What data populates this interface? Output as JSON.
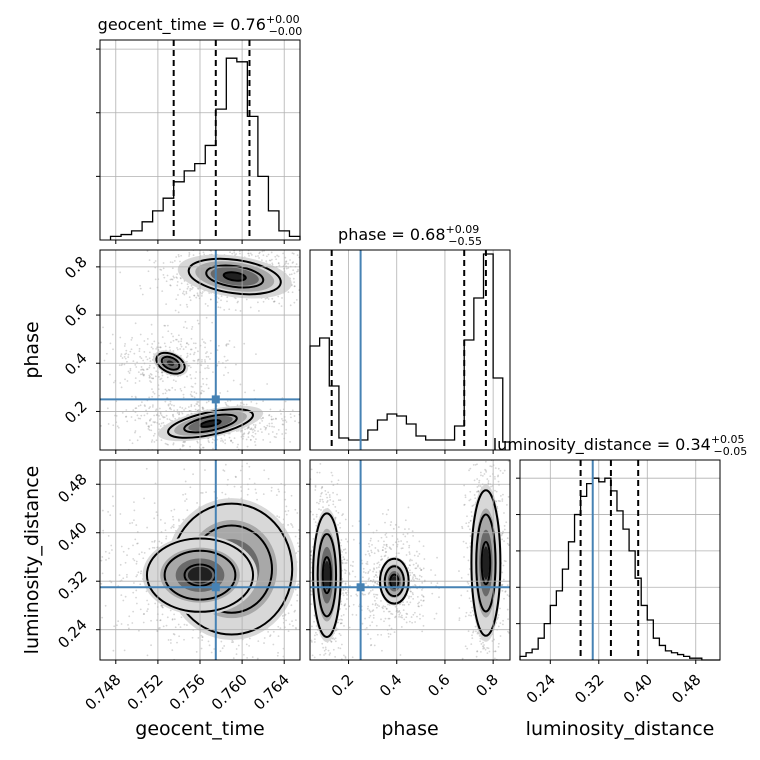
{
  "chart_data": {
    "type": "corner",
    "parameters": [
      "geocent_time",
      "phase",
      "luminosity_distance"
    ],
    "truths": {
      "geocent_time": 0.7575,
      "phase": 0.25,
      "luminosity_distance": 0.31
    },
    "colors": {
      "truth": "#4682b4",
      "contour": "#000000",
      "histogram": "#000000"
    },
    "grid": true,
    "diagonal": [
      {
        "param": "geocent_time",
        "title_main": "geocent_time = 0.76",
        "title_sup": "+0.00",
        "title_sub": "−0.00",
        "xlim": [
          0.7465,
          0.7655
        ],
        "ylim": [
          0,
          1.1
        ],
        "ticks": [
          0.748,
          0.752,
          0.756,
          0.76,
          0.764
        ],
        "tick_labels": [],
        "ytick_fracs": [
          0.35,
          0.7,
          1.05
        ],
        "quantiles": [
          0.7535,
          0.7575,
          0.7607
        ],
        "hist_edges": [
          0.7475,
          0.7485,
          0.7495,
          0.7505,
          0.7515,
          0.7525,
          0.7535,
          0.7545,
          0.7555,
          0.7565,
          0.7575,
          0.7585,
          0.7595,
          0.7605,
          0.7615,
          0.7625,
          0.7635,
          0.7645,
          0.7655
        ],
        "hist_values": [
          0.02,
          0.03,
          0.05,
          0.1,
          0.16,
          0.23,
          0.32,
          0.38,
          0.42,
          0.52,
          0.72,
          1.0,
          0.98,
          0.68,
          0.35,
          0.16,
          0.05,
          0.02
        ]
      },
      {
        "param": "phase",
        "title_main": "phase = 0.68",
        "title_sup": "+0.09",
        "title_sub": "−0.55",
        "xlim": [
          0.04,
          0.87
        ],
        "ylim": [
          0,
          1.0
        ],
        "ticks": [
          0.2,
          0.4,
          0.6,
          0.8
        ],
        "tick_labels": [],
        "ytick_fracs": [],
        "quantiles": [
          0.13,
          0.68,
          0.77
        ],
        "hist_edges": [
          0.04,
          0.08,
          0.12,
          0.16,
          0.2,
          0.24,
          0.28,
          0.32,
          0.36,
          0.4,
          0.44,
          0.48,
          0.52,
          0.56,
          0.6,
          0.64,
          0.68,
          0.72,
          0.76,
          0.8,
          0.84,
          0.87
        ],
        "hist_values": [
          0.52,
          0.56,
          0.32,
          0.06,
          0.05,
          0.05,
          0.1,
          0.15,
          0.18,
          0.17,
          0.13,
          0.07,
          0.05,
          0.05,
          0.05,
          0.12,
          0.55,
          0.76,
          0.98,
          0.36,
          0.04
        ]
      },
      {
        "param": "luminosity_distance",
        "title_main": "luminosity_distance = 0.34",
        "title_sup": "+0.05",
        "title_sub": "−0.05",
        "xlim": [
          0.19,
          0.52
        ],
        "ylim": [
          0,
          1.1
        ],
        "ticks": [
          0.24,
          0.32,
          0.4,
          0.48
        ],
        "tick_labels": [
          "0.24",
          "0.32",
          "0.40",
          "0.48"
        ],
        "ytick_fracs": [
          0.2,
          0.4,
          0.6,
          0.8,
          1.0
        ],
        "quantiles": [
          0.29,
          0.34,
          0.385
        ],
        "hist_edges": [
          0.19,
          0.2,
          0.21,
          0.22,
          0.23,
          0.24,
          0.25,
          0.26,
          0.27,
          0.28,
          0.29,
          0.3,
          0.31,
          0.32,
          0.33,
          0.34,
          0.35,
          0.36,
          0.37,
          0.38,
          0.39,
          0.4,
          0.41,
          0.42,
          0.43,
          0.44,
          0.45,
          0.46,
          0.47,
          0.48,
          0.49,
          0.5,
          0.51,
          0.52
        ],
        "hist_values": [
          0.02,
          0.04,
          0.06,
          0.12,
          0.2,
          0.3,
          0.38,
          0.5,
          0.65,
          0.8,
          0.9,
          0.97,
          1.0,
          0.98,
          1.0,
          0.93,
          0.82,
          0.72,
          0.6,
          0.45,
          0.3,
          0.22,
          0.12,
          0.08,
          0.05,
          0.04,
          0.03,
          0.02,
          0.01,
          0.01,
          0.0,
          0.0,
          0.0
        ]
      }
    ],
    "panels_2d": [
      {
        "x": "geocent_time",
        "y": "phase",
        "xlim": [
          0.7465,
          0.7655
        ],
        "ylim": [
          0.04,
          0.87
        ],
        "xticks": [
          0.748,
          0.752,
          0.756,
          0.76,
          0.764
        ],
        "xtick_labels": [],
        "yticks": [
          0.2,
          0.4,
          0.6,
          0.8
        ],
        "ytick_labels": [
          "0.2",
          "0.4",
          "0.6",
          "0.8"
        ],
        "clusters": [
          {
            "cx": 0.7593,
            "cy": 0.76,
            "sx": 0.0021,
            "sy": 0.033,
            "rot": -8,
            "weight": 1.0
          },
          {
            "cx": 0.7532,
            "cy": 0.4,
            "sx": 0.0017,
            "sy": 0.045,
            "rot": -25,
            "weight": 0.4
          },
          {
            "cx": 0.757,
            "cy": 0.15,
            "sx": 0.0028,
            "sy": 0.032,
            "rot": 12,
            "weight": 0.7
          }
        ],
        "contour_levels": [
          0.9,
          1.7,
          2.5
        ]
      },
      {
        "x": "geocent_time",
        "y": "luminosity_distance",
        "xlim": [
          0.7465,
          0.7655
        ],
        "ylim": [
          0.19,
          0.52
        ],
        "xticks": [
          0.748,
          0.752,
          0.756,
          0.76,
          0.764
        ],
        "xtick_labels": [
          "0.748",
          "0.752",
          "0.756",
          "0.760",
          "0.764"
        ],
        "yticks": [
          0.24,
          0.32,
          0.4,
          0.48
        ],
        "ytick_labels": [
          "0.24",
          "0.32",
          "0.40",
          "0.48"
        ],
        "clusters": [
          {
            "cx": 0.759,
            "cy": 0.34,
            "sx": 0.0024,
            "sy": 0.045,
            "rot": 0,
            "weight": 1.0
          },
          {
            "cx": 0.756,
            "cy": 0.33,
            "sx": 0.0035,
            "sy": 0.042,
            "rot": 0,
            "weight": 0.6
          }
        ],
        "contour_levels": [
          0.6,
          1.4,
          2.3
        ]
      },
      {
        "x": "phase",
        "y": "luminosity_distance",
        "xlim": [
          0.04,
          0.87
        ],
        "ylim": [
          0.19,
          0.52
        ],
        "xticks": [
          0.2,
          0.4,
          0.6,
          0.8
        ],
        "xtick_labels": [
          "0.2",
          "0.4",
          "0.6",
          "0.8"
        ],
        "yticks": [
          0.24,
          0.32,
          0.4,
          0.48
        ],
        "ytick_labels": [],
        "clusters": [
          {
            "cx": 0.11,
            "cy": 0.33,
            "sx": 0.028,
            "sy": 0.05,
            "rot": 0,
            "weight": 0.85
          },
          {
            "cx": 0.39,
            "cy": 0.32,
            "sx": 0.045,
            "sy": 0.028,
            "rot": 0,
            "weight": 0.55
          },
          {
            "cx": 0.77,
            "cy": 0.35,
            "sx": 0.025,
            "sy": 0.05,
            "rot": 0,
            "weight": 1.0
          }
        ],
        "contour_levels": [
          0.6,
          1.4,
          2.3
        ]
      }
    ],
    "axis_labels": {
      "bottom": [
        "geocent_time",
        "phase",
        "luminosity_distance"
      ],
      "left": [
        "phase",
        "luminosity_distance"
      ]
    }
  }
}
